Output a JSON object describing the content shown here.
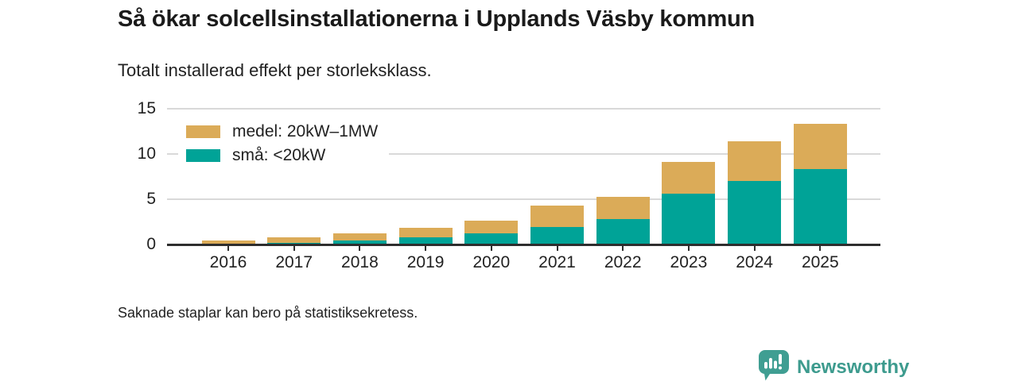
{
  "header": {
    "title": "Så ökar solcellsinstallationerna i Upplands Väsby kommun",
    "subtitle": "Totalt installerad effekt per storleksklass."
  },
  "chart_data": {
    "type": "bar",
    "stacked": true,
    "categories": [
      "2016",
      "2017",
      "2018",
      "2019",
      "2020",
      "2021",
      "2022",
      "2023",
      "2024",
      "2025"
    ],
    "series": [
      {
        "name": "medel: 20kW–1MW",
        "color": "#dbab58",
        "values": [
          0.4,
          0.6,
          0.8,
          1.0,
          1.4,
          2.4,
          2.5,
          3.5,
          4.4,
          5.0
        ]
      },
      {
        "name": "små: <20kW",
        "color": "#00a397",
        "values": [
          0,
          0.15,
          0.4,
          0.8,
          1.2,
          1.9,
          2.8,
          5.6,
          7.0,
          8.3
        ]
      }
    ],
    "stack_order_bottom_to_top": [
      "små: <20kW",
      "medel: 20kW–1MW"
    ],
    "title": "Så ökar solcellsinstallationerna i Upplands Väsby kommun",
    "subtitle": "Totalt installerad effekt per storleksklass.",
    "xlabel": "",
    "ylabel": "",
    "ylim": [
      0,
      15
    ],
    "yticks": [
      0,
      5,
      10,
      15
    ],
    "grid": true,
    "legend_position": "top-left-inside"
  },
  "footer": {
    "note": "Saknade staplar kan bero på statistiksekretess.",
    "brand": "Newsworthy"
  },
  "icons": {
    "brand_icon": "newsworthy-speech-bubble-bar-chart-icon",
    "brand_color": "#3f9e92"
  }
}
